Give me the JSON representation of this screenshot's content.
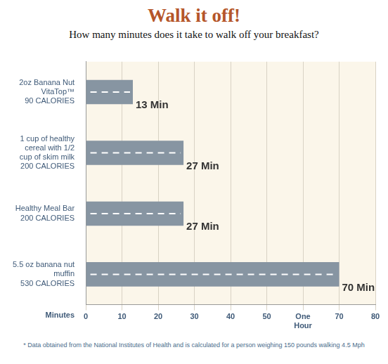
{
  "chart_data": {
    "type": "bar",
    "orientation": "horizontal",
    "title": "Walk it off!",
    "subtitle": "How many minutes does it take to walk off your breakfast?",
    "categories": [
      "2oz Banana Nut VitaTop™",
      "1 cup of healthy cereal with 1/2 cup of skim milk",
      "Healthy Meal Bar",
      "5.5 oz banana nut muffin"
    ],
    "calorie_labels": [
      "90 CALORIES",
      "200 CALORIES",
      "200 CALORIES",
      "530 CALORIES"
    ],
    "values": [
      13,
      27,
      27,
      70
    ],
    "value_labels": [
      "13 Min",
      "27 Min",
      "27 Min",
      "70 Min"
    ],
    "data_labels": true,
    "color": "#8795a2",
    "x_label": "Minutes",
    "xlim": [
      0,
      80
    ],
    "xticks": [
      0,
      10,
      20,
      30,
      40,
      50,
      {
        "value": 60,
        "label": "One Hour"
      },
      70,
      80
    ],
    "grid": true,
    "footnote": "* Data obtained from the National Institutes of Health and is calculated for a person weighing 150 pounds walking 4.5 Mph"
  }
}
